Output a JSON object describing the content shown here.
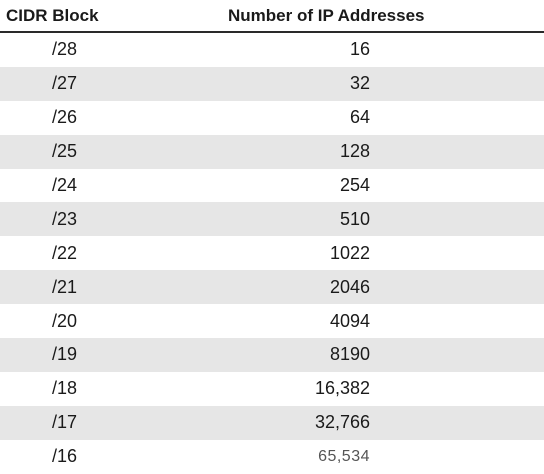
{
  "table": {
    "headers": {
      "cidr": "CIDR Block",
      "count": "Number of IP Addresses"
    },
    "rows": [
      {
        "cidr": "/28",
        "count": "16"
      },
      {
        "cidr": "/27",
        "count": "32"
      },
      {
        "cidr": "/26",
        "count": "64"
      },
      {
        "cidr": "/25",
        "count": "128"
      },
      {
        "cidr": "/24",
        "count": "254"
      },
      {
        "cidr": "/23",
        "count": "510"
      },
      {
        "cidr": "/22",
        "count": "1022"
      },
      {
        "cidr": "/21",
        "count": "2046"
      },
      {
        "cidr": "/20",
        "count": "4094"
      },
      {
        "cidr": "/19",
        "count": "8190"
      },
      {
        "cidr": "/18",
        "count": "16,382"
      },
      {
        "cidr": "/17",
        "count": "32,766"
      },
      {
        "cidr": "/16",
        "count": "65,534"
      }
    ]
  }
}
